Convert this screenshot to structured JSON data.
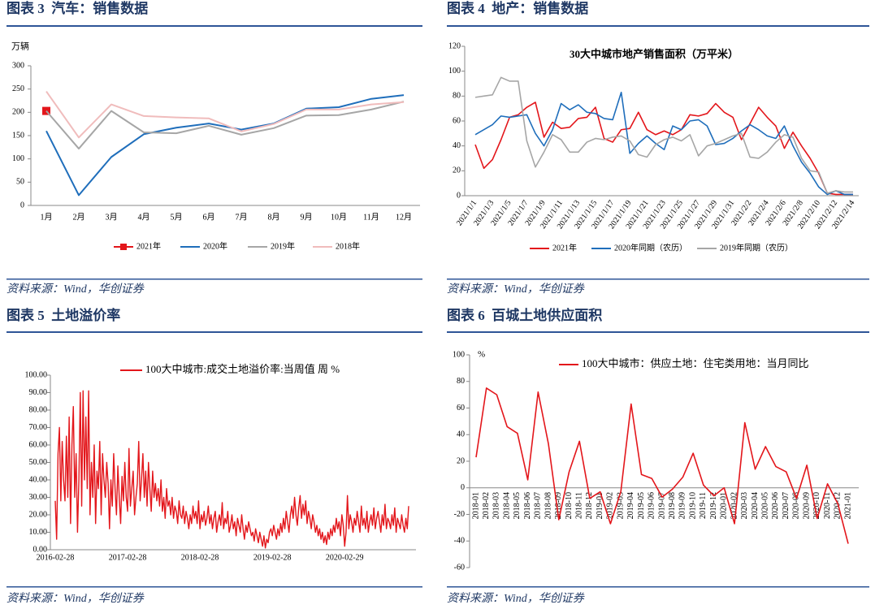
{
  "chart_data": [
    {
      "type": "line",
      "caption": "图表 3  汽车：销售数据",
      "y_label": "万辆",
      "source": "资料来源：Wind，华创证券",
      "categories": [
        "1月",
        "2月",
        "3月",
        "4月",
        "5月",
        "6月",
        "7月",
        "8月",
        "9月",
        "10月",
        "11月",
        "12月"
      ],
      "series": [
        {
          "name": "2021年",
          "color": "#e3161b",
          "marker": "square",
          "values": [
            203,
            null,
            null,
            null,
            null,
            null,
            null,
            null,
            null,
            null,
            null,
            null
          ]
        },
        {
          "name": "2020年",
          "color": "#1f6ebb",
          "values": [
            160,
            22,
            104,
            153,
            167,
            176,
            163,
            176,
            208,
            211,
            229,
            237
          ]
        },
        {
          "name": "2019年",
          "color": "#a6a6a6",
          "values": [
            203,
            122,
            203,
            157,
            155,
            171,
            152,
            166,
            193,
            194,
            206,
            223
          ]
        },
        {
          "name": "2018年",
          "color": "#f0bcbc",
          "values": [
            245,
            146,
            217,
            192,
            189,
            187,
            159,
            175,
            206,
            206,
            217,
            222
          ]
        }
      ],
      "ylim": [
        0,
        300
      ],
      "yticks": [
        0,
        50,
        100,
        150,
        200,
        250,
        300
      ],
      "legend": "bottom"
    },
    {
      "type": "line",
      "caption": "图表 4  地产：销售数据",
      "title": "30大中城市地产销售面积（万平米）",
      "source": "资料来源：Wind，华创证券",
      "categories": [
        "2021/1/1",
        null,
        "2021/1/3",
        null,
        "2021/1/5",
        null,
        "2021/1/7",
        null,
        "2021/1/9",
        null,
        "2021/1/11",
        null,
        "2021/1/13",
        null,
        "2021/1/15",
        null,
        "2021/1/17",
        null,
        "2021/1/19",
        null,
        "2021/1/21",
        null,
        "2021/1/23",
        null,
        "2021/1/25",
        null,
        "2021/1/27",
        null,
        "2021/1/29",
        null,
        "2021/1/31",
        null,
        "2021/2/2",
        null,
        "2021/2/4",
        null,
        "2021/2/6",
        null,
        "2021/2/8",
        null,
        "2021/2/10",
        null,
        "2021/2/12",
        null,
        "2021/2/14"
      ],
      "series": [
        {
          "name": "2021年",
          "color": "#e3161b",
          "values": [
            41,
            22,
            29,
            45,
            63,
            65,
            71,
            75,
            47,
            59,
            54,
            55,
            62,
            63,
            71,
            46,
            43,
            53,
            54,
            67,
            53,
            49,
            52,
            49,
            53,
            65,
            64,
            66,
            74,
            67,
            63,
            45,
            58,
            71,
            63,
            56,
            38,
            51,
            40,
            30,
            18,
            2,
            1,
            1,
            1
          ]
        },
        {
          "name": "2020年同期（农历）",
          "color": "#1f6ebb",
          "values": [
            49,
            53,
            57,
            64,
            63,
            64,
            65,
            50,
            40,
            53,
            74,
            69,
            73,
            67,
            66,
            62,
            61,
            83,
            34,
            42,
            48,
            42,
            37,
            56,
            53,
            60,
            61,
            56,
            41,
            42,
            46,
            52,
            57,
            53,
            48,
            46,
            56,
            40,
            27,
            18,
            7,
            1,
            4,
            1,
            1
          ]
        },
        {
          "name": "2019年同期（农历）",
          "color": "#a6a6a6",
          "values": [
            79,
            80,
            81,
            95,
            92,
            92,
            44,
            23,
            35,
            49,
            45,
            35,
            35,
            43,
            46,
            45,
            47,
            48,
            44,
            33,
            31,
            41,
            45,
            47,
            44,
            49,
            32,
            40,
            42,
            45,
            48,
            50,
            31,
            30,
            35,
            43,
            49,
            47,
            30,
            20,
            19,
            2,
            4,
            3,
            3
          ]
        }
      ],
      "ylim": [
        0,
        120
      ],
      "yticks": [
        0,
        20,
        40,
        60,
        80,
        100,
        120
      ],
      "legend": "bottom"
    },
    {
      "type": "line",
      "caption": "图表 5  土地溢价率",
      "source": "资料来源：Wind，华创证券",
      "categories": [
        "2016-02-28",
        null,
        null,
        null,
        null,
        null,
        null,
        null,
        null,
        null,
        null,
        null,
        null,
        null,
        null,
        null,
        null,
        null,
        null,
        null,
        null,
        null,
        null,
        null,
        null,
        null,
        null,
        null,
        null,
        null,
        null,
        null,
        null,
        null,
        null,
        null,
        null,
        null,
        null,
        null,
        null,
        null,
        null,
        null,
        null,
        null,
        null,
        null,
        null,
        null,
        null,
        null,
        "2017-02-28",
        null,
        null,
        null,
        null,
        null,
        null,
        null,
        null,
        null,
        null,
        null,
        null,
        null,
        null,
        null,
        null,
        null,
        null,
        null,
        null,
        null,
        null,
        null,
        null,
        null,
        null,
        null,
        null,
        null,
        null,
        null,
        null,
        null,
        null,
        null,
        null,
        null,
        null,
        null,
        null,
        null,
        null,
        null,
        null,
        null,
        null,
        null,
        null,
        null,
        null,
        null,
        "2018-02-28",
        null,
        null,
        null,
        null,
        null,
        null,
        null,
        null,
        null,
        null,
        null,
        null,
        null,
        null,
        null,
        null,
        null,
        null,
        null,
        null,
        null,
        null,
        null,
        null,
        null,
        null,
        null,
        null,
        null,
        null,
        null,
        null,
        null,
        null,
        null,
        null,
        null,
        null,
        null,
        null,
        null,
        null,
        null,
        null,
        null,
        null,
        null,
        null,
        null,
        null,
        null,
        "2019-02-28",
        null,
        null,
        null,
        null,
        null,
        null,
        null,
        null,
        null,
        null,
        null,
        null,
        null,
        null,
        null,
        null,
        null,
        null,
        null,
        null,
        null,
        null,
        null,
        null,
        null,
        null,
        null,
        null,
        null,
        null,
        null,
        null,
        null,
        null,
        null,
        null,
        null,
        null,
        null,
        null,
        null,
        null,
        null,
        null,
        null,
        null,
        null,
        null,
        null,
        null,
        null,
        "2020-02-29",
        null,
        null,
        null,
        null,
        null,
        null,
        null,
        null,
        null,
        null,
        null,
        null,
        null,
        null,
        null,
        null,
        null,
        null,
        null,
        null,
        null,
        null,
        null,
        null,
        null,
        null,
        null,
        null,
        null,
        null,
        null,
        null,
        null,
        null,
        null,
        null,
        null,
        null,
        null,
        null,
        null,
        null,
        null,
        null,
        null,
        null
      ],
      "series": [
        {
          "name": "100大中城市:成交土地溢价率:当周值 周 %",
          "color": "#e3161b",
          "values": [
            28,
            6,
            55,
            70,
            28,
            62,
            40,
            28,
            65,
            30,
            76,
            15,
            60,
            82,
            30,
            55,
            10,
            40,
            90,
            25,
            91,
            40,
            76,
            35,
            91,
            20,
            50,
            30,
            60,
            15,
            45,
            35,
            62,
            20,
            55,
            40,
            30,
            50,
            38,
            12,
            40,
            25,
            55,
            35,
            20,
            48,
            30,
            15,
            42,
            28,
            50,
            30,
            22,
            58,
            25,
            35,
            45,
            20,
            30,
            38,
            62,
            28,
            40,
            55,
            30,
            45,
            25,
            50,
            35,
            22,
            45,
            30,
            38,
            28,
            35,
            25,
            40,
            22,
            30,
            18,
            35,
            25,
            28,
            20,
            30,
            18,
            25,
            22,
            15,
            28,
            20,
            18,
            25,
            15,
            22,
            18,
            12,
            20,
            15,
            25,
            18,
            22,
            15,
            28,
            12,
            20,
            16,
            22,
            14,
            18,
            25,
            15,
            20,
            12,
            18,
            22,
            10,
            16,
            20,
            14,
            27,
            12,
            18,
            15,
            22,
            10,
            14,
            20,
            12,
            16,
            8,
            18,
            14,
            10,
            20,
            12,
            6,
            14,
            10,
            16,
            12,
            8,
            10,
            5,
            12,
            8,
            4,
            10,
            6,
            2,
            8,
            1,
            6,
            4,
            10,
            12,
            8,
            14,
            10,
            6,
            12,
            8,
            15,
            10,
            18,
            12,
            22,
            16,
            10,
            20,
            25,
            18,
            30,
            20,
            14,
            24,
            31,
            18,
            26,
            20,
            28,
            15,
            22,
            18,
            12,
            20,
            16,
            10,
            14,
            8,
            12,
            6,
            10,
            4,
            8,
            3,
            10,
            6,
            12,
            8,
            14,
            10,
            18,
            12,
            16,
            8,
            20,
            14,
            2,
            10,
            31,
            12,
            20,
            16,
            10,
            18,
            14,
            22,
            16,
            10,
            25,
            14,
            18,
            12,
            22,
            10,
            16,
            20,
            14,
            24,
            12,
            18,
            22,
            16,
            10,
            20,
            14,
            26,
            12,
            18,
            16,
            12,
            20,
            14,
            24,
            10,
            18,
            15,
            12,
            20,
            14,
            10,
            18,
            12,
            25
          ]
        }
      ],
      "ylim": [
        0,
        100
      ],
      "yticks": [
        {
          "value": 0,
          "label": "0.00"
        },
        {
          "value": 10,
          "label": "10.00"
        },
        {
          "value": 20,
          "label": "20.00"
        },
        {
          "value": 30,
          "label": "30.00"
        },
        {
          "value": 40,
          "label": "40.00"
        },
        {
          "value": 50,
          "label": "50.00"
        },
        {
          "value": 60,
          "label": "60.00"
        },
        {
          "value": 70,
          "label": "70.00"
        },
        {
          "value": 80,
          "label": "80.00"
        },
        {
          "value": 90,
          "label": "90.00"
        },
        {
          "value": 100,
          "label": "100.00"
        }
      ],
      "legend": "top"
    },
    {
      "type": "line",
      "caption": "图表 6  百城土地供应面积",
      "y_label": "%",
      "source": "资料来源：Wind，华创证券",
      "categories": [
        "2018-01",
        "2018-02",
        "2018-03",
        "2018-04",
        "2018-05",
        "2018-06",
        "2018-07",
        "2018-08",
        "2018-09",
        "2018-10",
        "2018-11",
        "2018-12",
        "2019-01",
        "2019-02",
        "2019-03",
        "2019-04",
        "2019-05",
        "2019-06",
        "2019-07",
        "2019-08",
        "2019-09",
        "2019-10",
        "2019-11",
        "2019-12",
        "2020-01",
        "2020-02",
        "2020-03",
        "2020-04",
        "2020-05",
        "2020-06",
        "2020-07",
        "2020-08",
        "2020-09",
        "2020-10",
        "2020-11",
        "2020-12",
        "2021-01"
      ],
      "series": [
        {
          "name": "100大中城市：供应土地：住宅类用地：当月同比",
          "color": "#e3161b",
          "values": [
            23,
            75,
            70,
            46,
            41,
            6,
            72,
            33,
            -24,
            12,
            35,
            -8,
            -3,
            -27,
            -3,
            63,
            10,
            7,
            -7,
            -1,
            8,
            26,
            2,
            -6,
            0,
            -27,
            49,
            14,
            31,
            16,
            12,
            -8,
            17,
            -23,
            3,
            -12,
            -42
          ]
        }
      ],
      "ylim": [
        -60,
        100
      ],
      "yticks": [
        -60,
        -40,
        -20,
        0,
        20,
        40,
        60,
        80,
        100
      ],
      "legend": "top"
    }
  ]
}
